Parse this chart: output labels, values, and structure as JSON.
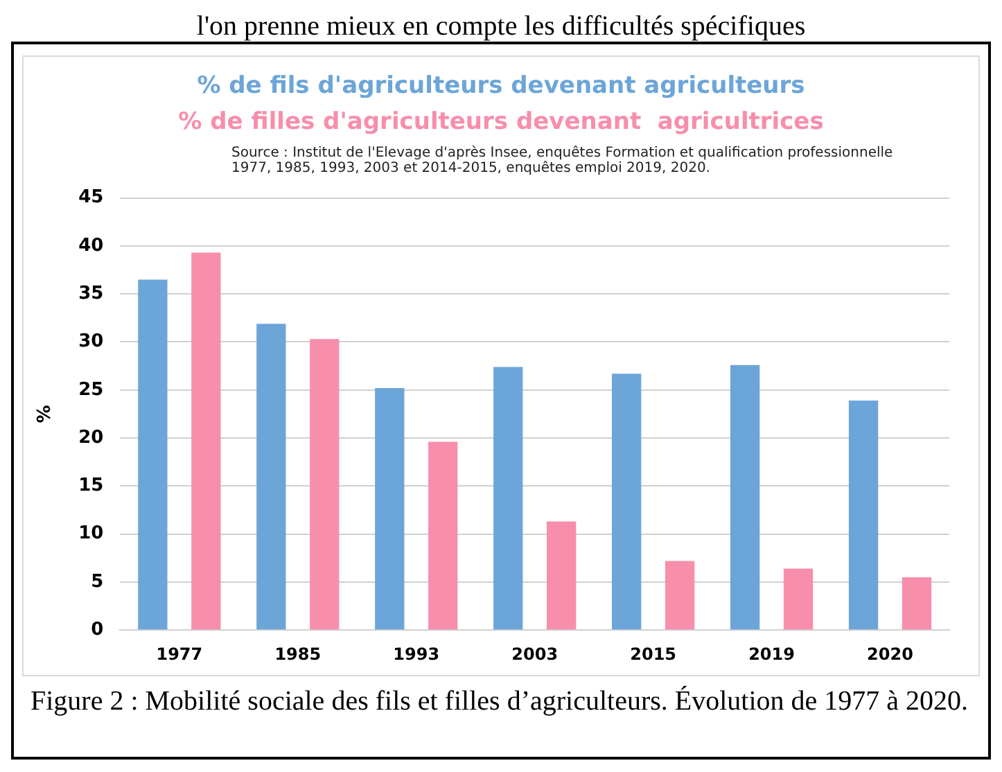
{
  "chart_data": {
    "type": "bar",
    "ylabel": "%",
    "categories": [
      "1977",
      "1985",
      "1993",
      "2003",
      "2015",
      "2019",
      "2020"
    ],
    "series": [
      {
        "name": "% de fils d'agriculteurs devenant agriculteurs",
        "color": "#6ca5d8",
        "values": [
          36.5,
          31.9,
          25.2,
          27.4,
          26.7,
          27.6,
          23.9
        ]
      },
      {
        "name": "% de filles d'agriculteurs devenant  agricultrices",
        "color": "#f78eac",
        "values": [
          39.3,
          30.3,
          19.6,
          11.3,
          7.2,
          6.4,
          5.5
        ]
      }
    ],
    "ylim": [
      0,
      45
    ],
    "yticks": [
      0,
      5,
      10,
      15,
      20,
      25,
      30,
      35,
      40,
      45
    ],
    "grid": "y",
    "legend": "top",
    "annotations": [
      "l'on prenne mieux en compte les difficultés spécifiques",
      "Source : Institut de l'Elevage d'après Insee, enquêtes Formation et qualification professionnelle 1977, 1985, 1993,  2003  et 2014-2015,  enquêtes emploi 2019, 2020.",
      "Figure 2 : Mobilité sociale des fils et filles d’agriculteurs. Évolution de 1977 à 2020."
    ]
  }
}
